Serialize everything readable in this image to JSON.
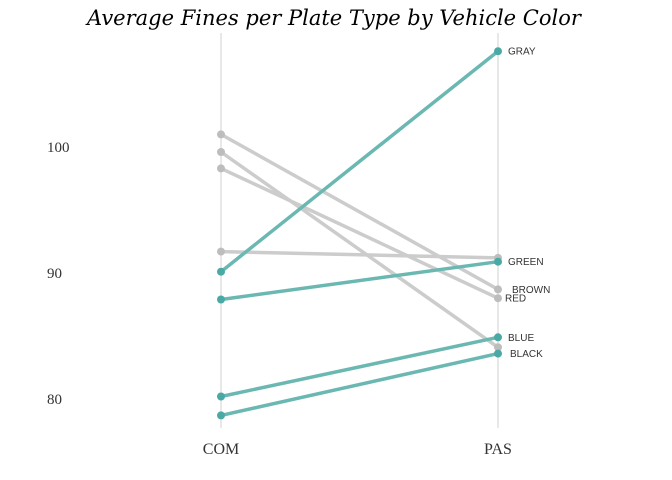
{
  "chart_data": {
    "type": "line",
    "title": "Average Fines per Plate Type by Vehicle Color",
    "xlabel": "",
    "ylabel": "",
    "categories": [
      "COM",
      "PAS"
    ],
    "yticks": [
      "80",
      "90",
      "100"
    ],
    "ylim": [
      77.5,
      110
    ],
    "grid": false,
    "colors": {
      "highlight": "#6bb8b3",
      "highlight_point": "#4aa9a4",
      "muted": "#cccccc",
      "muted_point": "#bdbdbd"
    },
    "series": [
      {
        "name": "GRAY",
        "values": [
          90.1,
          107.6
        ],
        "highlight": true
      },
      {
        "name": "GREEN",
        "values": [
          87.9,
          90.9
        ],
        "highlight": true
      },
      {
        "name": "BLUE",
        "values": [
          80.2,
          84.9
        ],
        "highlight": true
      },
      {
        "name": "BLACK",
        "values": [
          78.7,
          83.6
        ],
        "highlight": true
      },
      {
        "name": "BROWN",
        "values": [
          101.0,
          88.7
        ],
        "highlight": false
      },
      {
        "name": "RED",
        "values": [
          98.3,
          88.0
        ],
        "highlight": false
      },
      {
        "name": "",
        "values": [
          99.6,
          84.1
        ],
        "highlight": false
      },
      {
        "name": "",
        "values": [
          91.7,
          91.2
        ],
        "highlight": false
      }
    ]
  }
}
